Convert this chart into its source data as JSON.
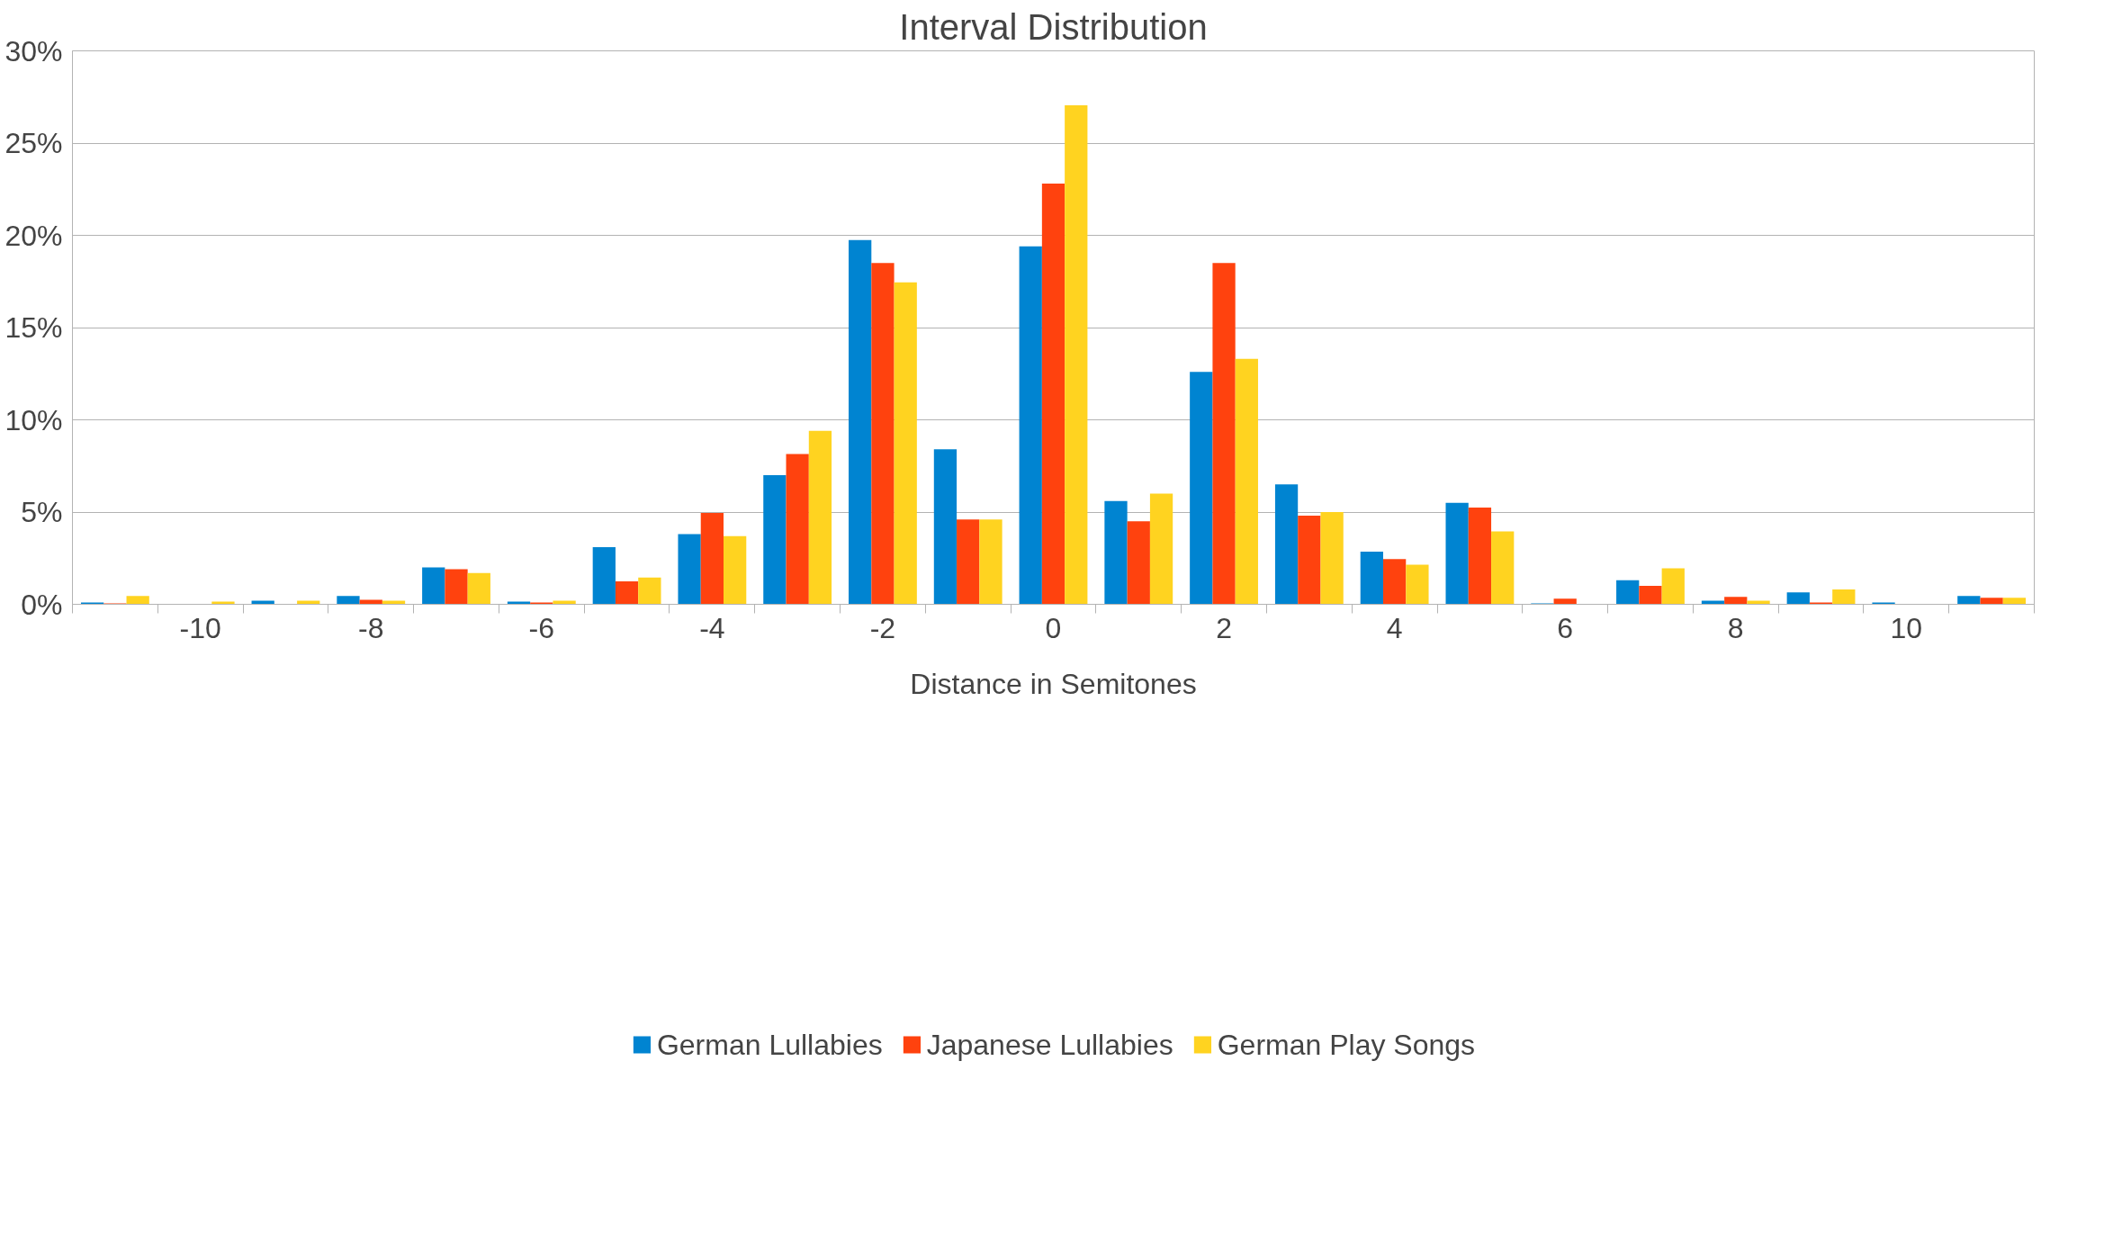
{
  "chart_data": {
    "type": "bar",
    "title": "Interval Distribution",
    "xlabel": "Distance in Semitones",
    "categories": [
      null,
      "-10",
      null,
      "-8",
      null,
      "-6",
      null,
      "-4",
      null,
      "-2",
      null,
      "0",
      null,
      "2",
      null,
      "4",
      null,
      "6",
      null,
      "8",
      null,
      "10",
      null
    ],
    "series": [
      {
        "name": "German Lullabies",
        "color": "#0084d1",
        "values": [
          0.1,
          null,
          0.2,
          0.45,
          2.0,
          0.15,
          3.1,
          3.8,
          7.0,
          19.75,
          8.4,
          19.4,
          5.6,
          12.6,
          6.5,
          2.85,
          5.5,
          0.05,
          1.3,
          0.2,
          0.65,
          0.1,
          0.45
        ]
      },
      {
        "name": "Japanese Lullabies",
        "color": "#ff420e",
        "values": [
          0.05,
          0,
          0,
          0.25,
          1.9,
          0.1,
          1.25,
          4.95,
          8.15,
          18.5,
          4.6,
          22.8,
          4.5,
          18.5,
          4.8,
          2.45,
          5.25,
          0.3,
          1.0,
          0.4,
          0.1,
          0,
          0.35
        ]
      },
      {
        "name": "German Play Songs",
        "color": "#ffd320",
        "values": [
          0.45,
          0.15,
          0.2,
          0.2,
          1.7,
          0.2,
          1.45,
          3.7,
          9.4,
          17.45,
          4.6,
          27.05,
          6.0,
          13.3,
          5.0,
          2.15,
          3.95,
          0,
          1.95,
          0.2,
          0.8,
          null,
          0.35
        ]
      }
    ],
    "ylim": [
      0,
      30
    ],
    "yticks": [
      {
        "value": 0,
        "label": "0%"
      },
      {
        "value": 5,
        "label": "5%"
      },
      {
        "value": 10,
        "label": "10%"
      },
      {
        "value": 15,
        "label": "15%"
      },
      {
        "value": 20,
        "label": "20%"
      },
      {
        "value": 25,
        "label": "25%"
      },
      {
        "value": 30,
        "label": "30%"
      }
    ],
    "grid": "y",
    "legend": "bottom"
  }
}
